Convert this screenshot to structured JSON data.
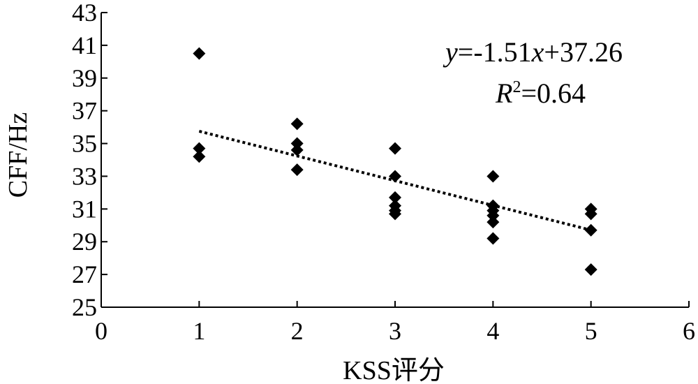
{
  "chart_data": {
    "type": "scatter",
    "xlabel": "KSS评分",
    "ylabel": "CFF/Hz",
    "xlim": [
      0,
      6
    ],
    "ylim": [
      25,
      43
    ],
    "x_ticks": [
      "0",
      "1",
      "2",
      "3",
      "4",
      "5",
      "6"
    ],
    "y_ticks": [
      "25",
      "27",
      "29",
      "31",
      "33",
      "35",
      "37",
      "39",
      "41",
      "43"
    ],
    "points": [
      {
        "x": 1,
        "y": 40.5
      },
      {
        "x": 1,
        "y": 34.7
      },
      {
        "x": 1,
        "y": 34.2
      },
      {
        "x": 2,
        "y": 36.2
      },
      {
        "x": 2,
        "y": 35.0
      },
      {
        "x": 2,
        "y": 34.6
      },
      {
        "x": 2,
        "y": 33.4
      },
      {
        "x": 3,
        "y": 34.7
      },
      {
        "x": 3,
        "y": 33.0
      },
      {
        "x": 3,
        "y": 31.7
      },
      {
        "x": 3,
        "y": 31.2
      },
      {
        "x": 3,
        "y": 30.9
      },
      {
        "x": 3,
        "y": 30.7
      },
      {
        "x": 4,
        "y": 33.0
      },
      {
        "x": 4,
        "y": 31.2
      },
      {
        "x": 4,
        "y": 30.9
      },
      {
        "x": 4,
        "y": 30.6
      },
      {
        "x": 4,
        "y": 30.2
      },
      {
        "x": 4,
        "y": 29.2
      },
      {
        "x": 5,
        "y": 31.0
      },
      {
        "x": 5,
        "y": 30.7
      },
      {
        "x": 5,
        "y": 29.7
      },
      {
        "x": 5,
        "y": 27.3
      }
    ],
    "trendline": {
      "slope": -1.51,
      "intercept": 37.26,
      "x_from": 1,
      "x_to": 5,
      "style": "dotted"
    },
    "equation": {
      "y_var": "y",
      "body": "=-1.51",
      "x_var": "x",
      "tail": "+37.26"
    },
    "r_squared": {
      "r": "R",
      "sup": "2",
      "value": "=0.64"
    },
    "marker": "diamond",
    "grid": false,
    "colors": {
      "marker": "#000000",
      "trendline": "#000000",
      "axis": "#000000"
    }
  }
}
